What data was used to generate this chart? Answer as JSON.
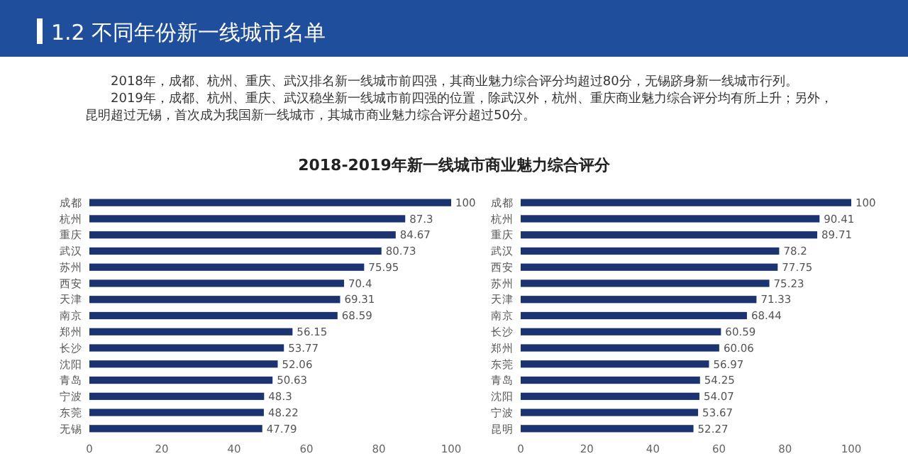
{
  "chart_data": [
    {
      "type": "bar",
      "orientation": "horizontal",
      "title": "1.2 不同年份新一线城市名单",
      "subtitle": "2018-2019年新一线城市商业魅力综合评分",
      "annotations": [
        "2018年，成都、杭州、重庆、武汉排名新一线城市前四强，其商业魅力综合评分均超过80分，无锡跻身新一线城市行列。",
        "2019年，成都、杭州、重庆、武汉稳坐新一线城市前四强的位置，除武汉外，杭州、重庆商业魅力综合评分均有所上升；另外，昆明超过无锡，首次成为我国新一线城市，其城市商业魅力综合评分超过50分。"
      ],
      "categories": [
        "成都",
        "杭州",
        "重庆",
        "武汉",
        "苏州",
        "西安",
        "天津",
        "南京",
        "郑州",
        "长沙",
        "沈阳",
        "青岛",
        "宁波",
        "东莞",
        "无锡"
      ],
      "values": [
        100,
        87.3,
        84.67,
        80.73,
        75.95,
        70.4,
        69.31,
        68.59,
        56.15,
        53.77,
        52.06,
        50.63,
        48.3,
        48.22,
        47.79
      ],
      "color": "#1b3370",
      "data_labels": true,
      "xlim": [
        0,
        100
      ],
      "xticks": [
        0,
        20,
        40,
        60,
        80,
        100
      ],
      "grid": false
    },
    {
      "type": "bar",
      "orientation": "horizontal",
      "categories": [
        "成都",
        "杭州",
        "重庆",
        "武汉",
        "西安",
        "苏州",
        "天津",
        "南京",
        "长沙",
        "郑州",
        "东莞",
        "青岛",
        "沈阳",
        "宁波",
        "昆明"
      ],
      "values": [
        100,
        90.41,
        89.71,
        78.2,
        77.75,
        75.23,
        71.33,
        68.44,
        60.59,
        60.06,
        56.97,
        54.25,
        54.07,
        53.67,
        52.27
      ],
      "color": "#1b3370",
      "data_labels": true,
      "xlim": [
        0,
        100
      ],
      "xticks": [
        0,
        20,
        40,
        60,
        80,
        100
      ],
      "grid": false
    }
  ]
}
